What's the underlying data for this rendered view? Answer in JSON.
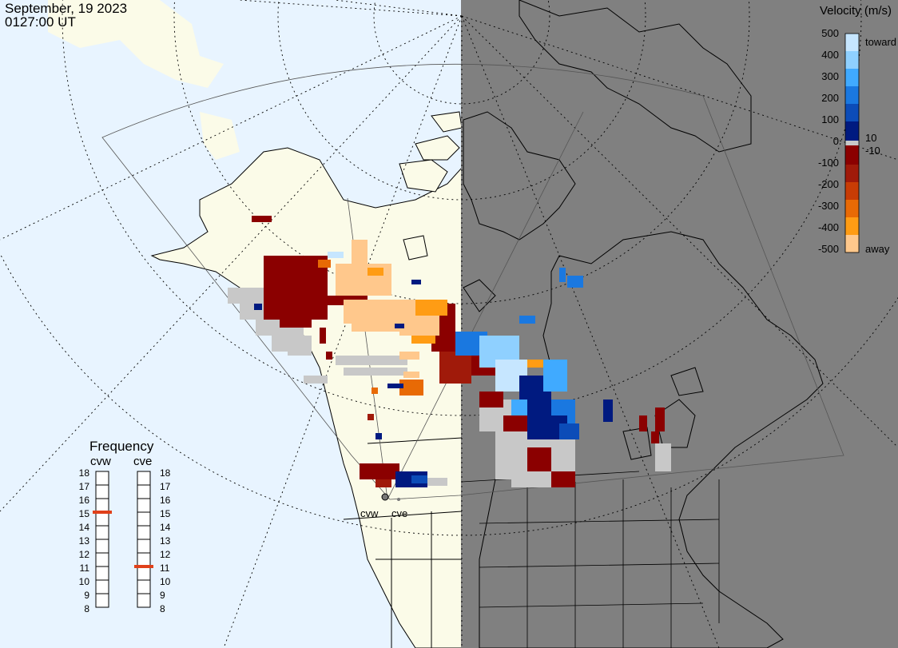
{
  "header": {
    "date": "September, 19 2023",
    "time": "0127:00 UT"
  },
  "legend": {
    "title": "Velocity (m/s)",
    "scale_labels": [
      "500",
      "400",
      "300",
      "200",
      "100",
      "0",
      "-100",
      "-200",
      "-300",
      "-400",
      "-500"
    ],
    "inner_labels": [
      "10",
      "-10"
    ],
    "toward_label": "toward",
    "away_label": "away",
    "colors": [
      "#c6e6ff",
      "#8fd0ff",
      "#40aaff",
      "#1a78e0",
      "#0c4cb8",
      "#001a80",
      "#8b0000",
      "#a01a0a",
      "#c83c05",
      "#e86a05",
      "#ff9c14",
      "#ffc88c"
    ],
    "zero_band_color": "#c8c8c8"
  },
  "frequency": {
    "title": "Frequency",
    "radars": [
      {
        "name": "cvw",
        "value_mhz": 15
      },
      {
        "name": "cve",
        "value_mhz": 11
      }
    ],
    "scale": [
      "18",
      "17",
      "16",
      "15",
      "14",
      "13",
      "12",
      "11",
      "10",
      "9",
      "8"
    ],
    "marker_color": "#e0401a"
  },
  "sites": [
    "cvw",
    "cve"
  ],
  "map": {
    "ocean_color": "#e8f4ff",
    "land_color": "#fbfbe8",
    "night_color": "#808080",
    "ground_scatter_color": "#c8c8c8"
  }
}
